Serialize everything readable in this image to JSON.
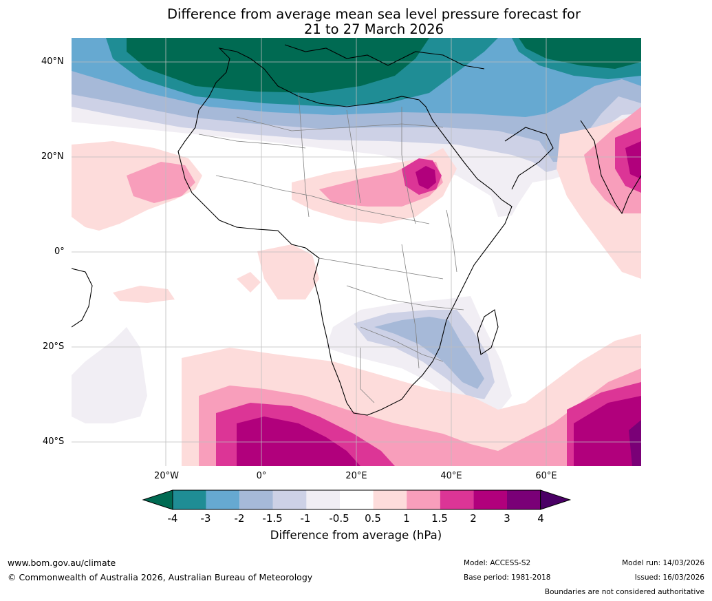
{
  "title": {
    "line1": "Difference from average mean sea level pressure forecast for",
    "line2": "21 to 27 March 2026"
  },
  "axes": {
    "y_ticks": [
      "40°N",
      "20°N",
      "0°",
      "20°S",
      "40°S"
    ],
    "x_ticks": [
      "20°W",
      "0°",
      "20°E",
      "40°E",
      "60°E"
    ]
  },
  "colorbar": {
    "labels": [
      "-4",
      "-3",
      "-2",
      "-1.5",
      "-1",
      "-0.5",
      "0.5",
      "1",
      "1.5",
      "2",
      "3",
      "4"
    ],
    "colors": [
      "#006a52",
      "#1f8d95",
      "#66a9d1",
      "#a6b9d8",
      "#cdd1e6",
      "#f1eef4",
      "#ffffff",
      "#fddcdb",
      "#f89ebb",
      "#dc3596",
      "#b1007c",
      "#7a0077",
      "#4a0065"
    ],
    "title": "Difference from average (hPa)"
  },
  "footer": {
    "website": "www.bom.gov.au/climate",
    "copyright": "© Commonwealth of Australia 2026, Australian Bureau of Meteorology",
    "model": "Model: ACCESS-S2",
    "base_period": "Base period: 1981-2018",
    "model_run": "Model run: 14/03/2026",
    "issued": "Issued: 16/03/2026",
    "disclaimer": "Boundaries are not considered authoritative"
  }
}
